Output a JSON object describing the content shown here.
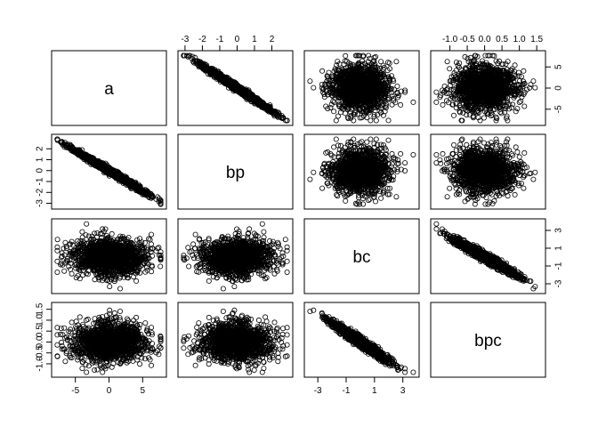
{
  "chart_data": {
    "type": "scatter",
    "kind": "scatterplot-matrix",
    "title": "",
    "variables": [
      {
        "name": "a",
        "range": [
          -8,
          8
        ],
        "ticks": [
          -5,
          0,
          5
        ],
        "tick_labels": [
          "-5",
          "0",
          "5"
        ],
        "sd": 2.7
      },
      {
        "name": "bp",
        "range": [
          -3.2,
          3.0
        ],
        "ticks": [
          -3,
          -2,
          -1,
          0,
          1,
          2
        ],
        "tick_labels": [
          "-3",
          "-2",
          "-1",
          "0",
          "1",
          "2"
        ],
        "sd": 1.0
      },
      {
        "name": "bc",
        "range": [
          -3.7,
          3.9
        ],
        "ticks": [
          -3,
          -1,
          1,
          3
        ],
        "tick_labels": [
          "-3",
          "-1",
          "1",
          "3"
        ],
        "sd": 1.0
      },
      {
        "name": "bpc",
        "range": [
          -1.45,
          1.65
        ],
        "ticks": [
          -1.0,
          -0.5,
          0.0,
          0.5,
          1.0,
          1.5
        ],
        "tick_labels": [
          "-1.0",
          "-0.5",
          "0.0",
          "0.5",
          "1.0",
          "1.5"
        ],
        "sd": 0.45
      }
    ],
    "correlations": [
      [
        1.0,
        -0.99,
        0.0,
        0.0
      ],
      [
        -0.99,
        1.0,
        0.0,
        0.0
      ],
      [
        0.0,
        0.0,
        1.0,
        -0.97
      ],
      [
        0.0,
        0.0,
        -0.97,
        1.0
      ]
    ],
    "point_count_per_panel": 1500,
    "marker": "open-circle",
    "axis_labels_shown": {
      "a": "bottom",
      "bp": "top",
      "bc": "right",
      "bpc": "top-left"
    },
    "colors": {
      "points": "#000000",
      "panel_border": "#000000",
      "background": "#ffffff"
    }
  }
}
